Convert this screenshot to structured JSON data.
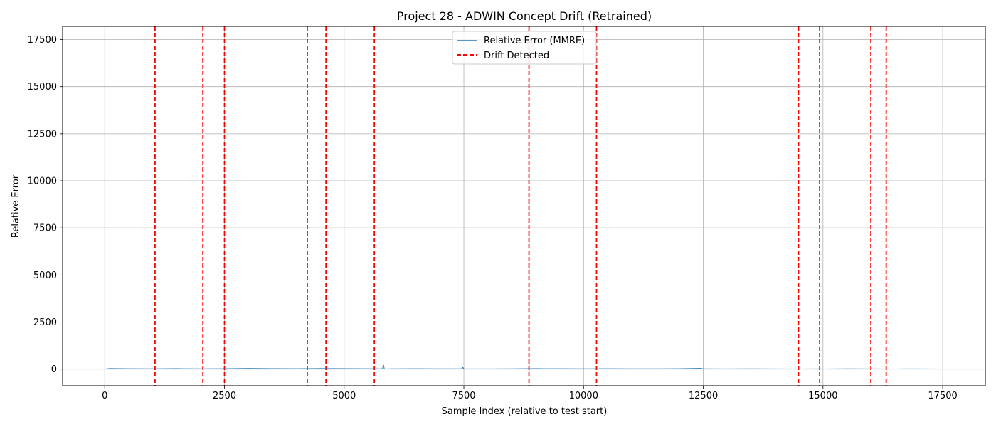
{
  "chart_data": {
    "type": "line",
    "title": "Project 28 - ADWIN Concept Drift (Retrained)",
    "xlabel": "Sample Index (relative to test start)",
    "ylabel": "Relative Error",
    "xlim": [
      -880,
      18390
    ],
    "ylim": [
      -880,
      18200
    ],
    "xticks": [
      0,
      2500,
      5000,
      7500,
      10000,
      12500,
      15000,
      17500
    ],
    "yticks": [
      0,
      2500,
      5000,
      7500,
      10000,
      12500,
      15000,
      17500
    ],
    "grid": true,
    "legend_position": "top-center",
    "series": [
      {
        "name": "Relative Error (MMRE)",
        "color": "#1f77b4",
        "x": [
          0,
          100,
          500,
          1000,
          1500,
          2000,
          2500,
          3000,
          3500,
          4000,
          4500,
          5000,
          5500,
          5800,
          5820,
          5840,
          6000,
          6500,
          7000,
          7450,
          7480,
          7500,
          8000,
          8500,
          9000,
          9500,
          10000,
          10500,
          11000,
          11500,
          12000,
          12450,
          12500,
          13000,
          13500,
          14000,
          14500,
          14950,
          15000,
          15500,
          16000,
          16500,
          17000,
          17500
        ],
        "y": [
          5,
          30,
          20,
          15,
          25,
          18,
          22,
          35,
          28,
          20,
          30,
          25,
          20,
          15,
          230,
          10,
          15,
          20,
          18,
          20,
          90,
          15,
          12,
          18,
          25,
          20,
          15,
          22,
          18,
          15,
          20,
          40,
          15,
          12,
          15,
          12,
          10,
          12,
          10,
          15,
          12,
          10,
          12,
          10
        ]
      },
      {
        "name": "Drift Detected",
        "color": "#ff0000",
        "style": "dashed",
        "vlines": [
          1050,
          2050,
          2500,
          4230,
          4620,
          5630,
          8860,
          10270,
          14490,
          14930,
          16000,
          16320
        ]
      }
    ]
  }
}
